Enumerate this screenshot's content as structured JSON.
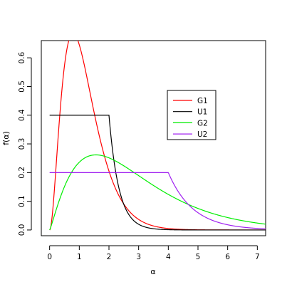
{
  "chart_data": {
    "type": "line",
    "title": "",
    "xlabel": "α",
    "ylabel": "f(α)",
    "xlim": [
      -0.28,
      7.28
    ],
    "ylim": [
      -0.02,
      0.66
    ],
    "x_ticks": [
      0,
      1,
      2,
      3,
      4,
      5,
      6,
      7
    ],
    "y_ticks": [
      0.0,
      0.1,
      0.2,
      0.3,
      0.4,
      0.5,
      0.6
    ],
    "x_tick_labels": [
      "0",
      "1",
      "2",
      "3",
      "4",
      "5",
      "6",
      "7"
    ],
    "y_tick_labels": [
      "0.0",
      "0.1",
      "0.2",
      "0.3",
      "0.4",
      "0.5",
      "0.6"
    ],
    "grid": false,
    "legend_position": "upper-right",
    "series": [
      {
        "name": "G1",
        "color": "#ff0000",
        "kind": "gamma",
        "shape": 3,
        "scale": 0.395
      },
      {
        "name": "U1",
        "color": "#000000",
        "kind": "uniform-tail",
        "level": 0.4,
        "cut": 2,
        "rate": 3
      },
      {
        "name": "G2",
        "color": "#00ee00",
        "kind": "gamma",
        "shape": 2.2,
        "scale": 1.3
      },
      {
        "name": "U2",
        "color": "#a020f0",
        "kind": "uniform-tail",
        "level": 0.2,
        "cut": 4,
        "rate": 1.2
      }
    ]
  }
}
